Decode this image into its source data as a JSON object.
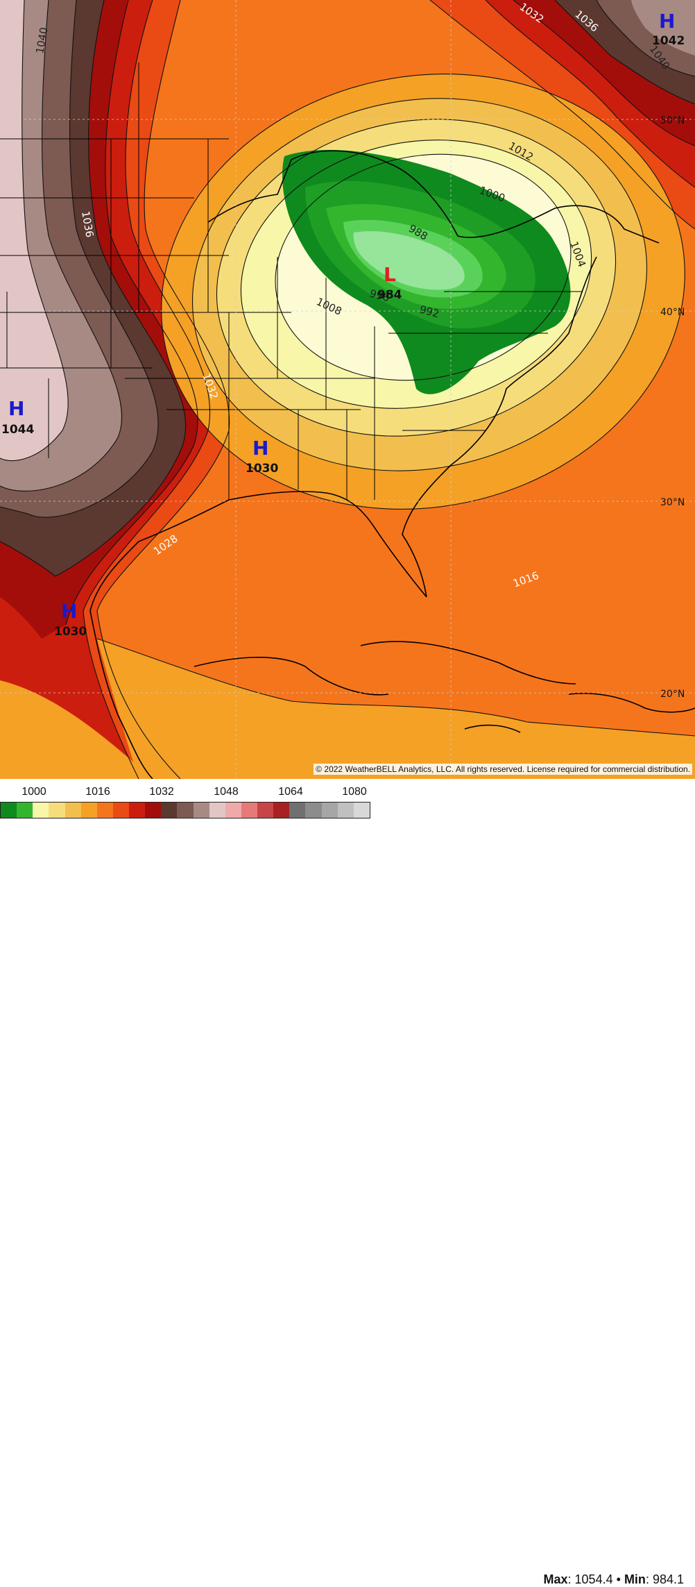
{
  "map": {
    "isobar_labels": [
      "1040",
      "1036",
      "1036",
      "1032",
      "1032",
      "1028",
      "1016",
      "1012",
      "1008",
      "1004",
      "1000",
      "996",
      "992",
      "988",
      "1040",
      "1042",
      "1036",
      "1032",
      "1028"
    ],
    "latitudes": [
      "50°N",
      "40°N",
      "30°N",
      "20°N"
    ],
    "pressure_centers": [
      {
        "type": "H",
        "value": "1042"
      },
      {
        "type": "H",
        "value": "1044"
      },
      {
        "type": "H",
        "value": "1030"
      },
      {
        "type": "H",
        "value": "1030"
      },
      {
        "type": "L",
        "value": "984"
      }
    ],
    "colors": {
      "high": "#1a1acc",
      "low": "#dd2222"
    }
  },
  "copyright": "© 2022 WeatherBELL Analytics, LLC. All rights reserved. License required for commercial distribution.",
  "legend": {
    "tick_labels": [
      "1000",
      "1016",
      "1032",
      "1048",
      "1064",
      "1080"
    ],
    "colors": [
      "#0f8a1e",
      "#34b52e",
      "#f8f6a8",
      "#f6dd7c",
      "#f2bf4e",
      "#f4a126",
      "#f5751c",
      "#ea4a14",
      "#cc1e0e",
      "#a30e0a",
      "#5b3830",
      "#7d5a52",
      "#a88a84",
      "#e2c6c6",
      "#f0a9a9",
      "#e67a7a",
      "#c84545",
      "#a82020",
      "#707070",
      "#8c8c8c",
      "#a6a6a6",
      "#c0c0c0",
      "#d8d8d8"
    ]
  },
  "stats": {
    "max_label": "Max",
    "max_value": "1054.4",
    "min_label": "Min",
    "min_value": "984.1",
    "separator": "•"
  }
}
